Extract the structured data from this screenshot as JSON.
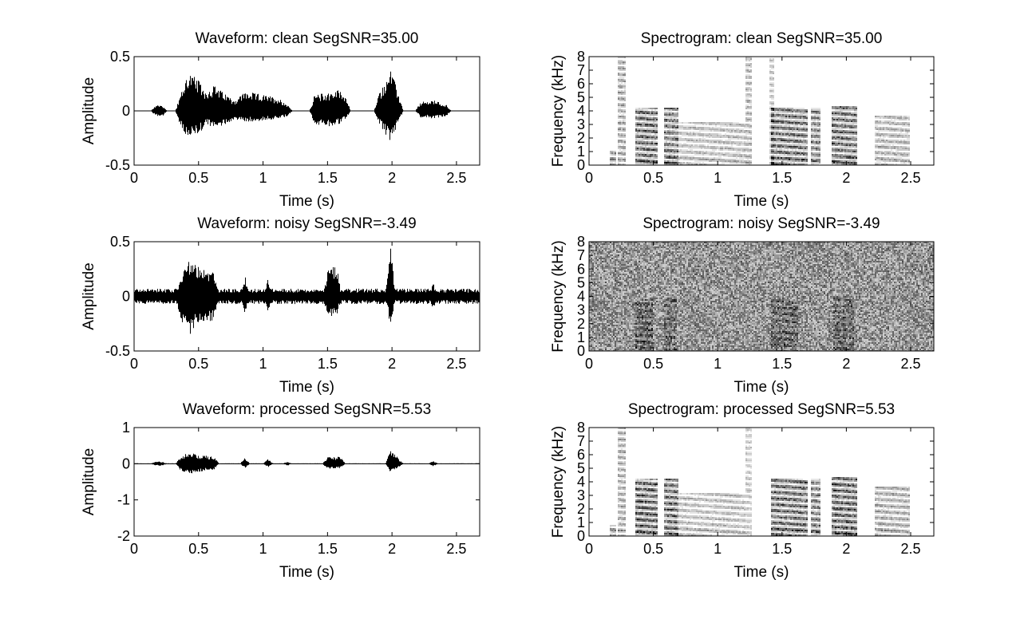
{
  "figure": {
    "colors": {
      "background": "#ffffff",
      "ink": "#000000",
      "spectrogram_base": "#ffffff"
    }
  },
  "chart_data": [
    {
      "id": "wave-clean",
      "type": "line",
      "title": "Waveform: clean  SegSNR=35.00",
      "xlabel": "Time (s)",
      "ylabel": "Amplitude",
      "xlim": [
        0,
        2.68
      ],
      "ylim": [
        -0.5,
        0.5
      ],
      "xticks": [
        0,
        0.5,
        1,
        1.5,
        2,
        2.5
      ],
      "xtick_labels": [
        "0",
        "0.5",
        "1",
        "1.5",
        "2",
        "2.5"
      ],
      "yticks": [
        0.5,
        0,
        -0.5
      ],
      "ytick_labels": [
        "0.5",
        "0",
        "-0.5"
      ],
      "noise_floor": 0.004,
      "envelope": [
        {
          "t": 0.17,
          "pos": 0.06,
          "neg": -0.05
        },
        {
          "t": 0.22,
          "pos": 0.05,
          "neg": -0.05
        },
        {
          "t": 0.36,
          "pos": 0.15,
          "neg": -0.15
        },
        {
          "t": 0.42,
          "pos": 0.37,
          "neg": -0.27
        },
        {
          "t": 0.5,
          "pos": 0.28,
          "neg": -0.22
        },
        {
          "t": 0.56,
          "pos": 0.18,
          "neg": -0.12
        },
        {
          "t": 0.62,
          "pos": 0.24,
          "neg": -0.18
        },
        {
          "t": 0.68,
          "pos": 0.18,
          "neg": -0.14
        },
        {
          "t": 0.78,
          "pos": 0.1,
          "neg": -0.08
        },
        {
          "t": 0.86,
          "pos": 0.18,
          "neg": -0.1
        },
        {
          "t": 0.95,
          "pos": 0.16,
          "neg": -0.1
        },
        {
          "t": 1.04,
          "pos": 0.14,
          "neg": -0.08
        },
        {
          "t": 1.12,
          "pos": 0.12,
          "neg": -0.08
        },
        {
          "t": 1.19,
          "pos": 0.06,
          "neg": -0.05
        },
        {
          "t": 1.4,
          "pos": 0.15,
          "neg": -0.12
        },
        {
          "t": 1.5,
          "pos": 0.17,
          "neg": -0.15
        },
        {
          "t": 1.6,
          "pos": 0.2,
          "neg": -0.12
        },
        {
          "t": 1.64,
          "pos": 0.14,
          "neg": -0.08
        },
        {
          "t": 1.9,
          "pos": 0.16,
          "neg": -0.12
        },
        {
          "t": 1.99,
          "pos": 0.39,
          "neg": -0.3
        },
        {
          "t": 2.05,
          "pos": 0.16,
          "neg": -0.1
        },
        {
          "t": 2.22,
          "pos": 0.08,
          "neg": -0.06
        },
        {
          "t": 2.32,
          "pos": 0.1,
          "neg": -0.07
        },
        {
          "t": 2.42,
          "pos": 0.06,
          "neg": -0.05
        }
      ]
    },
    {
      "id": "spec-clean",
      "type": "heatmap",
      "title": "Spectrogram: clean  SegSNR=35.00",
      "xlabel": "Time (s)",
      "ylabel": "Frequency (kHz)",
      "xlim": [
        0,
        2.68
      ],
      "ylim": [
        0,
        8
      ],
      "xticks": [
        0,
        0.5,
        1,
        1.5,
        2,
        2.5
      ],
      "xtick_labels": [
        "0",
        "0.5",
        "1",
        "1.5",
        "2",
        "2.5"
      ],
      "yticks": [
        0,
        1,
        2,
        3,
        4,
        5,
        6,
        7,
        8
      ],
      "ytick_labels": [
        "0",
        "1",
        "2",
        "3",
        "4",
        "5",
        "6",
        "7",
        "8"
      ],
      "colormap": "gray-reversed",
      "background_noise": 0.02,
      "regions": [
        {
          "t0": 0.36,
          "t1": 0.53,
          "fmax": 4.2,
          "strength": 0.8
        },
        {
          "t0": 0.58,
          "t1": 0.7,
          "fmax": 4.2,
          "strength": 0.75
        },
        {
          "t0": 0.7,
          "t1": 1.22,
          "fmax": 3.2,
          "strength": 0.35
        },
        {
          "t0": 1.42,
          "t1": 1.7,
          "fmax": 4.2,
          "strength": 0.75
        },
        {
          "t0": 1.72,
          "t1": 1.8,
          "fmax": 4.2,
          "strength": 0.7
        },
        {
          "t0": 1.88,
          "t1": 2.08,
          "fmax": 4.3,
          "strength": 0.8
        },
        {
          "t0": 2.22,
          "t1": 2.5,
          "fmax": 3.7,
          "strength": 0.4
        },
        {
          "t0": 0.22,
          "t1": 0.29,
          "fmax": 8.0,
          "strength": 0.45
        },
        {
          "t0": 1.22,
          "t1": 1.26,
          "fmax": 8.0,
          "strength": 0.4
        },
        {
          "t0": 1.4,
          "t1": 1.44,
          "fmax": 8.0,
          "strength": 0.3
        },
        {
          "t0": 0.16,
          "t1": 0.21,
          "fmax": 1.0,
          "strength": 0.5
        }
      ]
    },
    {
      "id": "wave-noisy",
      "type": "line",
      "title": "Waveform: noisy  SegSNR=-3.49",
      "xlabel": "Time (s)",
      "ylabel": "Amplitude",
      "xlim": [
        0,
        2.68
      ],
      "ylim": [
        -0.5,
        0.5
      ],
      "xticks": [
        0,
        0.5,
        1,
        1.5,
        2,
        2.5
      ],
      "xtick_labels": [
        "0",
        "0.5",
        "1",
        "1.5",
        "2",
        "2.5"
      ],
      "yticks": [
        0.5,
        0,
        -0.5
      ],
      "ytick_labels": [
        "0.5",
        "0",
        "-0.5"
      ],
      "noise_floor": 0.07,
      "envelope": [
        {
          "t": 0.36,
          "pos": 0.2,
          "neg": -0.2
        },
        {
          "t": 0.42,
          "pos": 0.34,
          "neg": -0.38
        },
        {
          "t": 0.5,
          "pos": 0.28,
          "neg": -0.25
        },
        {
          "t": 0.62,
          "pos": 0.24,
          "neg": -0.22
        },
        {
          "t": 0.86,
          "pos": 0.19,
          "neg": -0.16
        },
        {
          "t": 1.04,
          "pos": 0.17,
          "neg": -0.16
        },
        {
          "t": 1.5,
          "pos": 0.23,
          "neg": -0.18
        },
        {
          "t": 1.57,
          "pos": 0.3,
          "neg": -0.2
        },
        {
          "t": 1.99,
          "pos": 0.48,
          "neg": -0.3
        },
        {
          "t": 2.32,
          "pos": 0.12,
          "neg": -0.12
        }
      ]
    },
    {
      "id": "spec-noisy",
      "type": "heatmap",
      "title": "Spectrogram: noisy  SegSNR=-3.49",
      "xlabel": "Time (s)",
      "ylabel": "Frequency (kHz)",
      "xlim": [
        0,
        2.68
      ],
      "ylim": [
        0,
        8
      ],
      "xticks": [
        0,
        0.5,
        1,
        1.5,
        2,
        2.5
      ],
      "xtick_labels": [
        "0",
        "0.5",
        "1",
        "1.5",
        "2",
        "2.5"
      ],
      "yticks": [
        0,
        1,
        2,
        3,
        4,
        5,
        6,
        7,
        8
      ],
      "ytick_labels": [
        "0",
        "1",
        "2",
        "3",
        "4",
        "5",
        "6",
        "7",
        "8"
      ],
      "colormap": "gray-reversed",
      "background_noise": 0.55,
      "regions": [
        {
          "t0": 0.36,
          "t1": 0.5,
          "fmax": 3.8,
          "strength": 0.35
        },
        {
          "t0": 0.58,
          "t1": 0.68,
          "fmax": 3.8,
          "strength": 0.3
        },
        {
          "t0": 1.42,
          "t1": 1.62,
          "fmax": 3.8,
          "strength": 0.3
        },
        {
          "t0": 1.9,
          "t1": 2.06,
          "fmax": 4.0,
          "strength": 0.3
        }
      ]
    },
    {
      "id": "wave-processed",
      "type": "line",
      "title": "Waveform: processed  SegSNR=5.53",
      "xlabel": "Time (s)",
      "ylabel": "Amplitude",
      "xlim": [
        0,
        2.68
      ],
      "ylim": [
        -2,
        1
      ],
      "xticks": [
        0,
        0.5,
        1,
        1.5,
        2,
        2.5
      ],
      "xtick_labels": [
        "0",
        "0.5",
        "1",
        "1.5",
        "2",
        "2.5"
      ],
      "yticks": [
        1,
        0,
        -1,
        -2
      ],
      "ytick_labels": [
        "1",
        "0",
        "-1",
        "-2"
      ],
      "noise_floor": 0.01,
      "envelope": [
        {
          "t": 0.17,
          "pos": 0.07,
          "neg": -0.06
        },
        {
          "t": 0.22,
          "pos": 0.05,
          "neg": -0.05
        },
        {
          "t": 0.36,
          "pos": 0.18,
          "neg": -0.18
        },
        {
          "t": 0.42,
          "pos": 0.34,
          "neg": -0.3
        },
        {
          "t": 0.5,
          "pos": 0.24,
          "neg": -0.22
        },
        {
          "t": 0.62,
          "pos": 0.2,
          "neg": -0.16
        },
        {
          "t": 0.86,
          "pos": 0.16,
          "neg": -0.12
        },
        {
          "t": 1.04,
          "pos": 0.14,
          "neg": -0.1
        },
        {
          "t": 1.19,
          "pos": 0.06,
          "neg": -0.05
        },
        {
          "t": 1.5,
          "pos": 0.18,
          "neg": -0.15
        },
        {
          "t": 1.6,
          "pos": 0.2,
          "neg": -0.14
        },
        {
          "t": 1.99,
          "pos": 0.4,
          "neg": -0.26
        },
        {
          "t": 2.05,
          "pos": 0.15,
          "neg": -0.1
        },
        {
          "t": 2.32,
          "pos": 0.08,
          "neg": -0.07
        }
      ]
    },
    {
      "id": "spec-processed",
      "type": "heatmap",
      "title": "Spectrogram: processed  SegSNR=5.53",
      "xlabel": "Time (s)",
      "ylabel": "Frequency (kHz)",
      "xlim": [
        0,
        2.68
      ],
      "ylim": [
        0,
        8
      ],
      "xticks": [
        0,
        0.5,
        1,
        1.5,
        2,
        2.5
      ],
      "xtick_labels": [
        "0",
        "0.5",
        "1",
        "1.5",
        "2",
        "2.5"
      ],
      "yticks": [
        0,
        1,
        2,
        3,
        4,
        5,
        6,
        7,
        8
      ],
      "ytick_labels": [
        "0",
        "1",
        "2",
        "3",
        "4",
        "5",
        "6",
        "7",
        "8"
      ],
      "colormap": "gray-reversed",
      "background_noise": 0.01,
      "regions": [
        {
          "t0": 0.36,
          "t1": 0.53,
          "fmax": 4.2,
          "strength": 0.85
        },
        {
          "t0": 0.58,
          "t1": 0.7,
          "fmax": 4.2,
          "strength": 0.8
        },
        {
          "t0": 0.7,
          "t1": 1.22,
          "fmax": 3.2,
          "strength": 0.35
        },
        {
          "t0": 1.42,
          "t1": 1.7,
          "fmax": 4.2,
          "strength": 0.8
        },
        {
          "t0": 1.72,
          "t1": 1.8,
          "fmax": 4.2,
          "strength": 0.7
        },
        {
          "t0": 1.88,
          "t1": 2.08,
          "fmax": 4.3,
          "strength": 0.85
        },
        {
          "t0": 2.22,
          "t1": 2.5,
          "fmax": 3.7,
          "strength": 0.45
        },
        {
          "t0": 0.22,
          "t1": 0.29,
          "fmax": 8.0,
          "strength": 0.45
        },
        {
          "t0": 1.22,
          "t1": 1.26,
          "fmax": 8.0,
          "strength": 0.3
        },
        {
          "t0": 0.16,
          "t1": 0.21,
          "fmax": 0.8,
          "strength": 0.6
        }
      ]
    }
  ]
}
